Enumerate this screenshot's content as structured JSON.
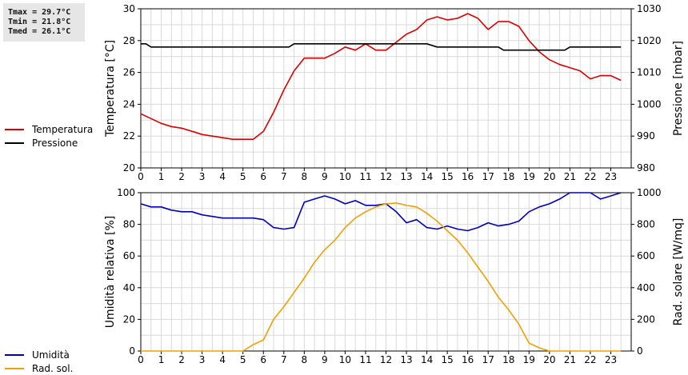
{
  "stats": {
    "tmax": "Tmax = 29.7°C",
    "tmin": "Tmin = 21.8°C",
    "tmed": "Tmed = 26.1°C"
  },
  "legend_top": [
    {
      "label": "Temperatura",
      "color": "#dd0000"
    },
    {
      "label": "Pressione",
      "color": "#000000"
    }
  ],
  "legend_bottom": [
    {
      "label": "Umidità",
      "color": "#0000bb"
    },
    {
      "label": "Rad. sol.",
      "color": "#f0a000"
    }
  ],
  "chart_data": [
    {
      "type": "line",
      "grid": true,
      "xticks": [
        "0",
        "1",
        "2",
        "3",
        "4",
        "5",
        "6",
        "7",
        "8",
        "9",
        "10",
        "11",
        "12",
        "13",
        "14",
        "15",
        "16",
        "17",
        "18",
        "19",
        "20",
        "21",
        "22",
        "23"
      ],
      "xlim": [
        0,
        24
      ],
      "ylabel_left": "Temperatura [°C]",
      "ylim_left": [
        20,
        30
      ],
      "yticks_left": [
        "20",
        "22",
        "24",
        "26",
        "28",
        "30"
      ],
      "ylabel_right": "Pressione [mbar]",
      "ylim_right": [
        980,
        1030
      ],
      "yticks_right": [
        "980",
        "990",
        "1000",
        "1010",
        "1020",
        "1030"
      ],
      "series": [
        {
          "name": "Temperatura",
          "axis": "left",
          "color": "#dd0000",
          "x": [
            0,
            0.5,
            1,
            1.5,
            2,
            2.5,
            3,
            3.5,
            4,
            4.5,
            5,
            5.5,
            6,
            6.5,
            7,
            7.5,
            8,
            8.5,
            9,
            9.5,
            10,
            10.5,
            11,
            11.5,
            12,
            12.5,
            13,
            13.5,
            14,
            14.5,
            15,
            15.5,
            16,
            16.5,
            17,
            17.5,
            18,
            18.5,
            19,
            19.5,
            20,
            20.5,
            21,
            21.5,
            22,
            22.5,
            23,
            23.5
          ],
          "y": [
            23.4,
            23.1,
            22.8,
            22.6,
            22.5,
            22.3,
            22.1,
            22.0,
            21.9,
            21.8,
            21.8,
            21.8,
            22.3,
            23.5,
            24.9,
            26.1,
            26.9,
            26.9,
            26.9,
            27.2,
            27.6,
            27.4,
            27.8,
            27.4,
            27.4,
            27.9,
            28.4,
            28.7,
            29.3,
            29.5,
            29.3,
            29.4,
            29.7,
            29.4,
            28.7,
            29.2,
            29.2,
            28.9,
            28.0,
            27.3,
            26.8,
            26.5,
            26.3,
            26.1,
            25.6,
            25.8,
            25.8,
            25.5
          ]
        },
        {
          "name": "Pressione",
          "axis": "right",
          "color": "#000000",
          "x": [
            0,
            0.25,
            0.5,
            7,
            7.25,
            7.5,
            14,
            14.5,
            15,
            17.5,
            17.75,
            18,
            20.5,
            20.75,
            21,
            23.5
          ],
          "y": [
            1019,
            1019,
            1018,
            1018,
            1018,
            1019,
            1019,
            1018,
            1018,
            1018,
            1017,
            1017,
            1017,
            1017,
            1018,
            1018
          ]
        }
      ]
    },
    {
      "type": "line",
      "grid": true,
      "xticks": [
        "0",
        "1",
        "2",
        "3",
        "4",
        "5",
        "6",
        "7",
        "8",
        "9",
        "10",
        "11",
        "12",
        "13",
        "14",
        "15",
        "16",
        "17",
        "18",
        "19",
        "20",
        "21",
        "22",
        "23"
      ],
      "xlim": [
        0,
        24
      ],
      "ylabel_left": "Umidità relativa [%]",
      "ylim_left": [
        0,
        100
      ],
      "yticks_left": [
        "0",
        "20",
        "40",
        "60",
        "80",
        "100"
      ],
      "ylabel_right": "Rad. solare [W/mq]",
      "ylim_right": [
        0,
        1000
      ],
      "yticks_right": [
        "0",
        "200",
        "400",
        "600",
        "800",
        "1000"
      ],
      "series": [
        {
          "name": "Umidità",
          "axis": "left",
          "color": "#0000bb",
          "x": [
            0,
            0.5,
            1,
            1.5,
            2,
            2.5,
            3,
            3.5,
            4,
            4.5,
            5,
            5.5,
            6,
            6.5,
            7,
            7.5,
            8,
            8.5,
            9,
            9.5,
            10,
            10.5,
            11,
            11.5,
            12,
            12.5,
            13,
            13.5,
            14,
            14.5,
            15,
            15.5,
            16,
            16.5,
            17,
            17.5,
            18,
            18.5,
            19,
            19.5,
            20,
            20.5,
            21,
            21.5,
            22,
            22.5,
            23,
            23.5
          ],
          "y": [
            93,
            91,
            91,
            89,
            88,
            88,
            86,
            85,
            84,
            84,
            84,
            84,
            83,
            78,
            77,
            78,
            94,
            96,
            98,
            96,
            93,
            95,
            92,
            92,
            93,
            88,
            81,
            83,
            78,
            77,
            79,
            77,
            76,
            78,
            81,
            79,
            80,
            82,
            88,
            91,
            93,
            96,
            100,
            100,
            100,
            96,
            98,
            100
          ]
        },
        {
          "name": "Rad. sol.",
          "axis": "right",
          "color": "#f0a000",
          "x": [
            0,
            0.5,
            1,
            1.5,
            2,
            2.5,
            3,
            3.5,
            4,
            4.5,
            5,
            5.5,
            6,
            6.5,
            7,
            7.5,
            8,
            8.5,
            9,
            9.5,
            10,
            10.5,
            11,
            11.5,
            12,
            12.5,
            13,
            13.5,
            14,
            14.5,
            15,
            15.5,
            16,
            16.5,
            17,
            17.5,
            18,
            18.5,
            19,
            19.5,
            20,
            20.5,
            21,
            21.5,
            22,
            22.5,
            23,
            23.5
          ],
          "y": [
            0,
            0,
            0,
            0,
            0,
            0,
            0,
            0,
            0,
            0,
            0,
            40,
            70,
            200,
            280,
            370,
            460,
            560,
            640,
            700,
            780,
            840,
            880,
            910,
            930,
            935,
            920,
            910,
            870,
            820,
            760,
            700,
            620,
            530,
            440,
            340,
            260,
            170,
            50,
            20,
            0,
            0,
            0,
            0,
            0,
            0,
            0,
            0
          ]
        }
      ]
    }
  ]
}
